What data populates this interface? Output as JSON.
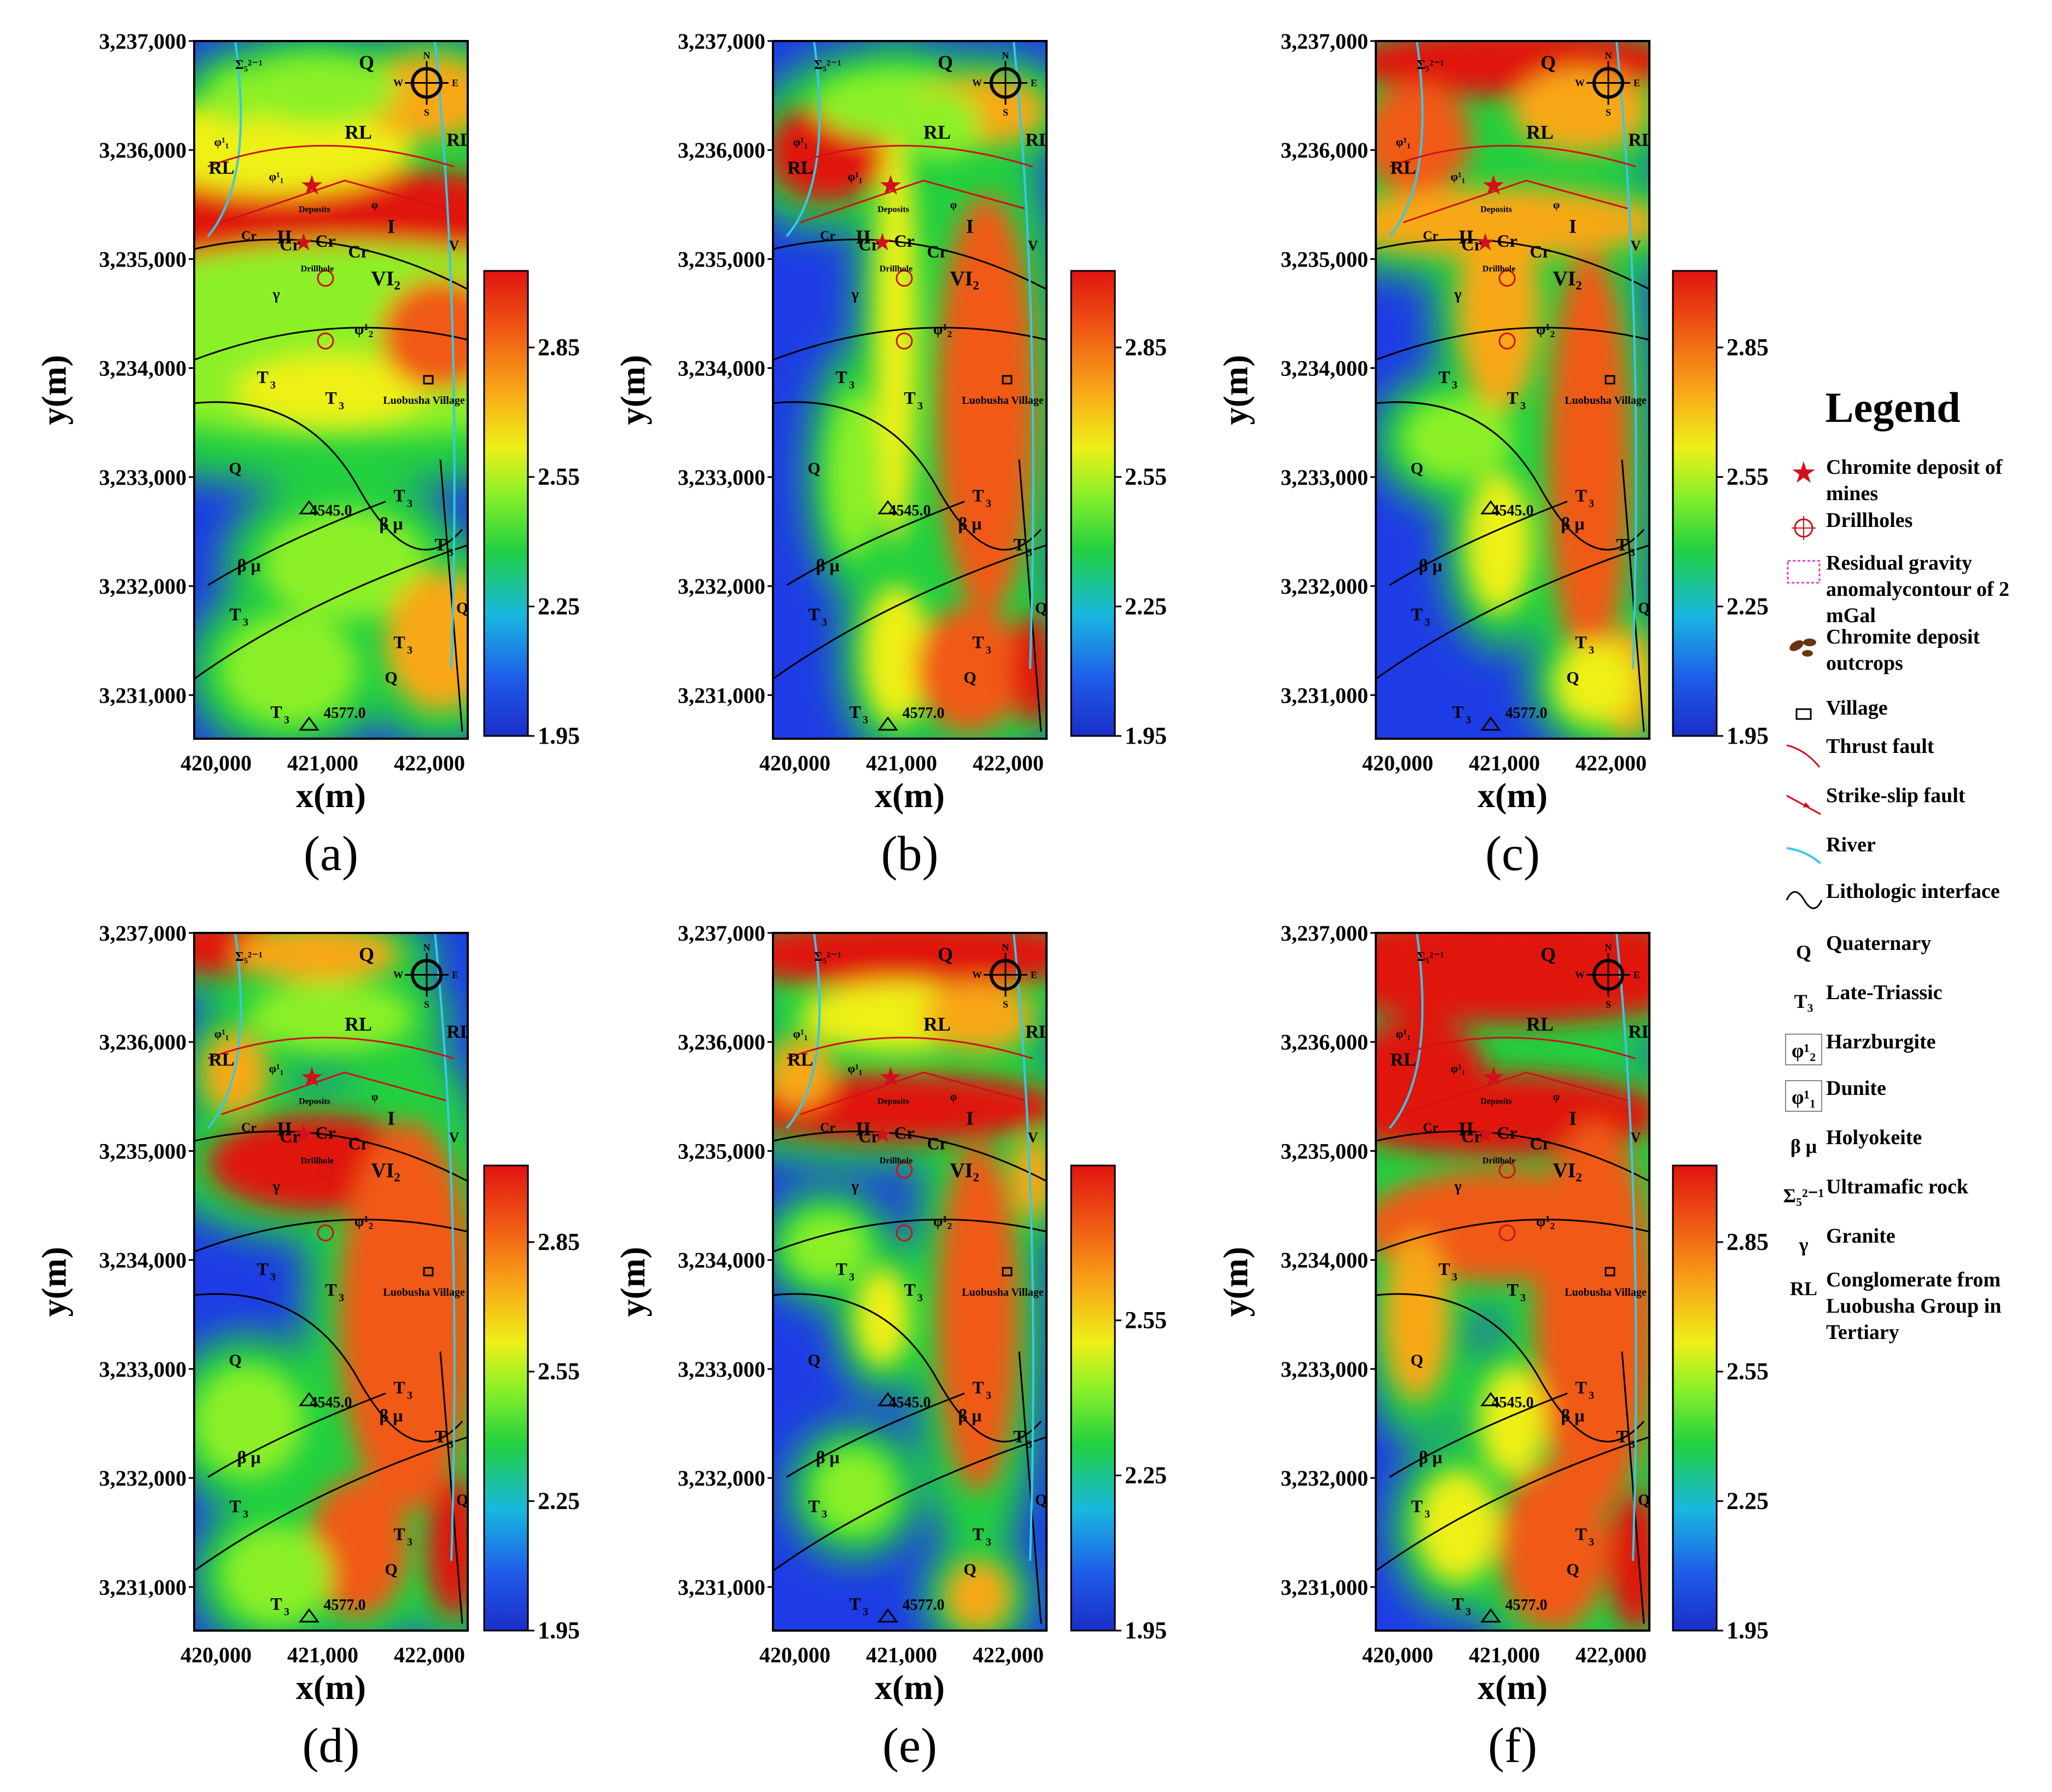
{
  "colors": {
    "ramp": [
      "#1a2ec8",
      "#1f5ae8",
      "#18b8e0",
      "#22d040",
      "#8cf028",
      "#eef018",
      "#f8a818",
      "#f05a14",
      "#e01410"
    ],
    "low": "#1e3ce6",
    "fault": "#d0101a",
    "river": "#38c8e8",
    "line": "#000000"
  },
  "panels": [
    {
      "label": "(a)",
      "colorbar_ticks": [
        "2.85",
        "2.55",
        "2.25",
        "1.95"
      ]
    },
    {
      "label": "(b)",
      "colorbar_ticks": [
        "2.85",
        "2.55",
        "2.25",
        "1.95"
      ]
    },
    {
      "label": "(c)",
      "colorbar_ticks": [
        "2.85",
        "2.55",
        "2.25",
        "1.95"
      ]
    },
    {
      "label": "(d)",
      "colorbar_ticks": [
        "2.85",
        "2.55",
        "2.25",
        "1.95"
      ]
    },
    {
      "label": "(e)",
      "colorbar_ticks": [
        "2.55",
        "2.25",
        "1.95"
      ]
    },
    {
      "label": "(f)",
      "colorbar_ticks": [
        "2.85",
        "2.55",
        "2.25",
        "1.95"
      ]
    }
  ],
  "axes": {
    "xlabel": "x(m)",
    "ylabel": "y(m)",
    "xticks": [
      "420,000",
      "421,000",
      "422,000"
    ],
    "yticks": [
      "3,237,000",
      "3,236,000",
      "3,235,000",
      "3,234,000",
      "3,233,000",
      "3,232,000",
      "3,231,000"
    ]
  },
  "map_labels": {
    "Q": "Q",
    "RL": "RL",
    "T3": "T",
    "T3_sub": "3",
    "Cr": "Cr",
    "I": "I",
    "II": "II",
    "V": "V",
    "VI": "VI₂",
    "deposits": "Deposits",
    "drillhole": "Drillhole",
    "village": "Luobusha Village",
    "peak1": "4545.0",
    "peak2": "4577.0",
    "beta_mu": "β μ",
    "phi1": "φ¹₁",
    "phi2": "φ¹₂",
    "phi": "φ",
    "sigma": "Σ₅²⁻¹",
    "gamma": "γ",
    "compass": [
      "N",
      "S",
      "W",
      "E"
    ]
  },
  "legend": {
    "title": "Legend",
    "items": [
      {
        "symbol": "star",
        "text": "Chromite deposit of mines"
      },
      {
        "symbol": "drillhole",
        "text": "Drillholes"
      },
      {
        "symbol": "dashbox",
        "text": "Residual gravity anomalycontour of 2 mGal"
      },
      {
        "symbol": "outcrops",
        "text": "Chromite deposit outcrops"
      },
      {
        "symbol": "village",
        "text": "Village"
      },
      {
        "symbol": "thrust",
        "text": "Thrust fault"
      },
      {
        "symbol": "strike",
        "text": "Strike-slip fault"
      },
      {
        "symbol": "river",
        "text": "River"
      },
      {
        "symbol": "litho",
        "text": "Lithologic interface"
      },
      {
        "symbol": "text",
        "sym_text": "Q",
        "text": "Quaternary"
      },
      {
        "symbol": "text",
        "sym_text": "T₃",
        "text": "Late-Triassic"
      },
      {
        "symbol": "box",
        "sym_text": "φ¹₂",
        "text": "Harzburgite"
      },
      {
        "symbol": "box",
        "sym_text": "φ¹₁",
        "text": "Dunite"
      },
      {
        "symbol": "text",
        "sym_text": "β μ",
        "text": "Holyokeite"
      },
      {
        "symbol": "text",
        "sym_text": "Σ₅²⁻¹",
        "text": "Ultramafic rock"
      },
      {
        "symbol": "text",
        "sym_text": "γ",
        "text": "Granite"
      },
      {
        "symbol": "text",
        "sym_text": "RL",
        "text": "Conglomerate from Luobusha Group in Tertiary"
      }
    ]
  }
}
